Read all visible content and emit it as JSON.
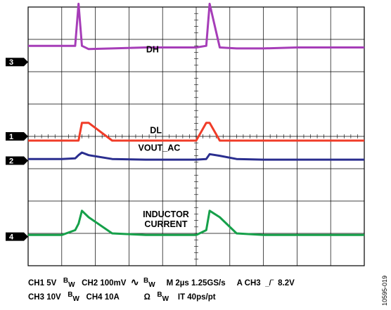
{
  "chart_data": {
    "type": "line",
    "title": "",
    "grid": true,
    "divisions": {
      "x": 10,
      "y": 8
    },
    "x_unit_per_div": "2µs",
    "x": [
      0,
      0.5,
      1.0,
      1.4,
      1.5,
      1.6,
      1.8,
      2.5,
      3.5,
      4.5,
      5.0,
      5.3,
      5.4,
      5.7,
      6.2,
      7.0,
      8.0,
      9.0,
      9.5,
      10.0
    ],
    "series": [
      {
        "name": "DH",
        "channel": "3",
        "color": "#a63db8",
        "label": "DH",
        "label_pos": [
          3.7,
          6.6
        ],
        "marker_level": 6.3,
        "values": [
          6.8,
          6.8,
          6.8,
          6.8,
          8.1,
          6.8,
          6.7,
          6.72,
          6.75,
          6.75,
          6.75,
          6.8,
          8.1,
          6.75,
          6.72,
          6.72,
          6.75,
          6.75,
          6.75,
          6.75
        ]
      },
      {
        "name": "DL",
        "channel": "1",
        "color": "#f03c28",
        "label": "DL",
        "label_pos": [
          3.8,
          4.1
        ],
        "marker_level": 4.0,
        "values": [
          3.87,
          3.87,
          3.87,
          3.87,
          3.87,
          4.42,
          4.42,
          3.87,
          3.87,
          3.87,
          3.87,
          4.42,
          4.42,
          3.87,
          3.87,
          3.87,
          3.87,
          3.87,
          3.87,
          3.87
        ]
      },
      {
        "name": "VOUT_AC",
        "channel": "2",
        "color": "#2a2e8f",
        "label": "VOUT_AC",
        "label_pos": [
          3.9,
          3.55
        ],
        "marker_level": 3.25,
        "values": [
          3.3,
          3.3,
          3.3,
          3.32,
          3.42,
          3.5,
          3.42,
          3.3,
          3.28,
          3.28,
          3.28,
          3.3,
          3.45,
          3.4,
          3.3,
          3.28,
          3.28,
          3.28,
          3.28,
          3.28
        ]
      },
      {
        "name": "INDUCTOR CURRENT",
        "channel": "4",
        "color": "#16a04a",
        "label": "INDUCTOR\nCURRENT",
        "label_pos": [
          4.1,
          1.5
        ],
        "marker_level": 0.9,
        "values": [
          0.95,
          0.95,
          0.95,
          1.1,
          1.3,
          1.7,
          1.5,
          1.0,
          0.95,
          0.95,
          0.95,
          1.1,
          1.7,
          1.5,
          1.0,
          0.95,
          0.95,
          0.95,
          0.95,
          0.95
        ]
      }
    ]
  },
  "readout": {
    "line1": {
      "ch1": "CH1 5V",
      "bw1": {
        "b": "B",
        "w": "W"
      },
      "ch2": "CH2 100mV",
      "wave_symbol": "∿",
      "bw2": {
        "b": "B",
        "w": "W"
      },
      "timebase": "M 2µs  1.25GS/s",
      "trigger": "A  CH3",
      "trigger_symbol": "_/‾",
      "trigger_level": "8.2V"
    },
    "line2": {
      "ch3": "CH3 10V",
      "bw3": {
        "b": "B",
        "w": "W"
      },
      "ch4": "CH4 10A",
      "ohm_symbol": "Ω",
      "bw4": {
        "b": "B",
        "w": "W"
      },
      "interp": "IT 40ps/pt"
    }
  },
  "figure_id": "10595-019"
}
